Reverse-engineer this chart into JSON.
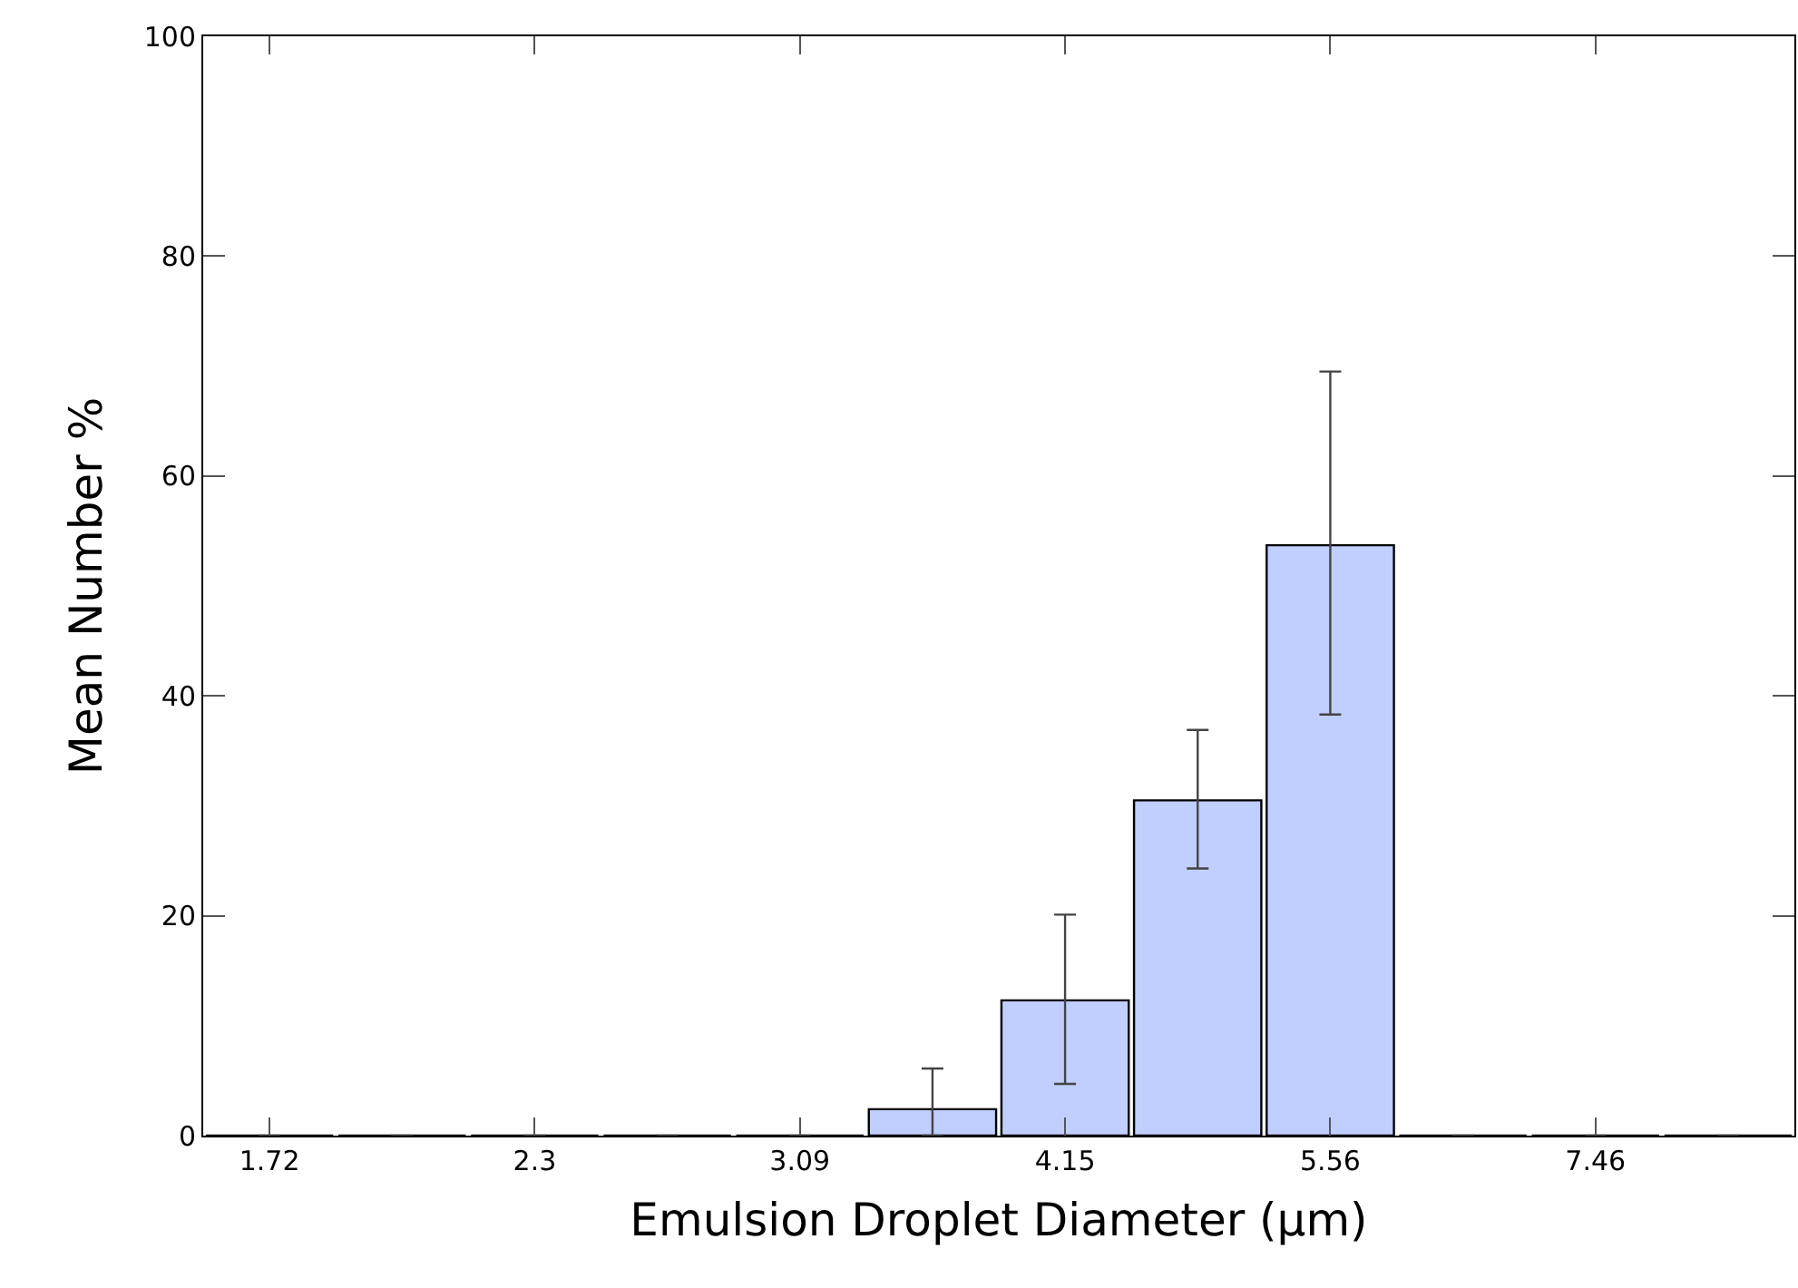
{
  "chart_data": {
    "type": "bar",
    "xlabel": "Emulsion Droplet Diameter (μm)",
    "ylabel": "Mean Number %",
    "categories": [
      "1.72",
      null,
      "2.3",
      null,
      "3.09",
      null,
      "4.15",
      null,
      "5.56",
      null,
      "7.46",
      null
    ],
    "values": [
      0,
      0,
      0,
      0,
      0,
      2.4,
      12.3,
      30.5,
      53.7,
      0,
      0,
      0
    ],
    "errors": [
      null,
      null,
      null,
      null,
      null,
      [
        0,
        6.1
      ],
      [
        4.7,
        20.1
      ],
      [
        24.3,
        36.9
      ],
      [
        38.3,
        69.5
      ],
      null,
      null,
      null
    ],
    "colors": [
      "#000000",
      "#000000",
      "#000000",
      "#000000",
      "#000000",
      "#c0cfff",
      "#c0cfff",
      "#c0cfff",
      "#c0cfff",
      "#000000",
      "#000000",
      "#000000"
    ],
    "ylim": [
      0,
      100
    ],
    "yticks": [
      0,
      20,
      40,
      60,
      80,
      100
    ]
  }
}
